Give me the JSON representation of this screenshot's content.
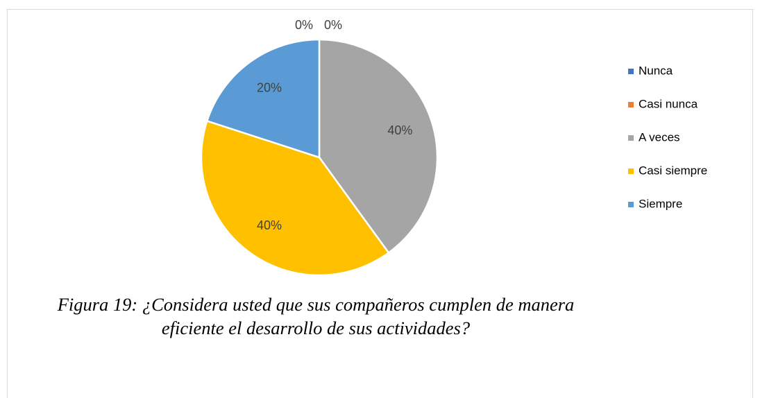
{
  "chart_data": {
    "type": "pie",
    "caption": "Figura 19: ¿Considera usted que sus compañeros cumplen de manera eficiente el desarrollo de sus actividades?",
    "categories": [
      "Nunca",
      "Casi nunca",
      "A veces",
      "Casi siempre",
      "Siempre"
    ],
    "values": [
      0,
      0,
      40,
      40,
      20
    ],
    "value_labels": [
      "0%",
      "0%",
      "40%",
      "40%",
      "20%"
    ],
    "colors": [
      "#4472c4",
      "#ed7d31",
      "#a5a5a5",
      "#ffc000",
      "#5b9bd5"
    ],
    "legend": "right"
  }
}
